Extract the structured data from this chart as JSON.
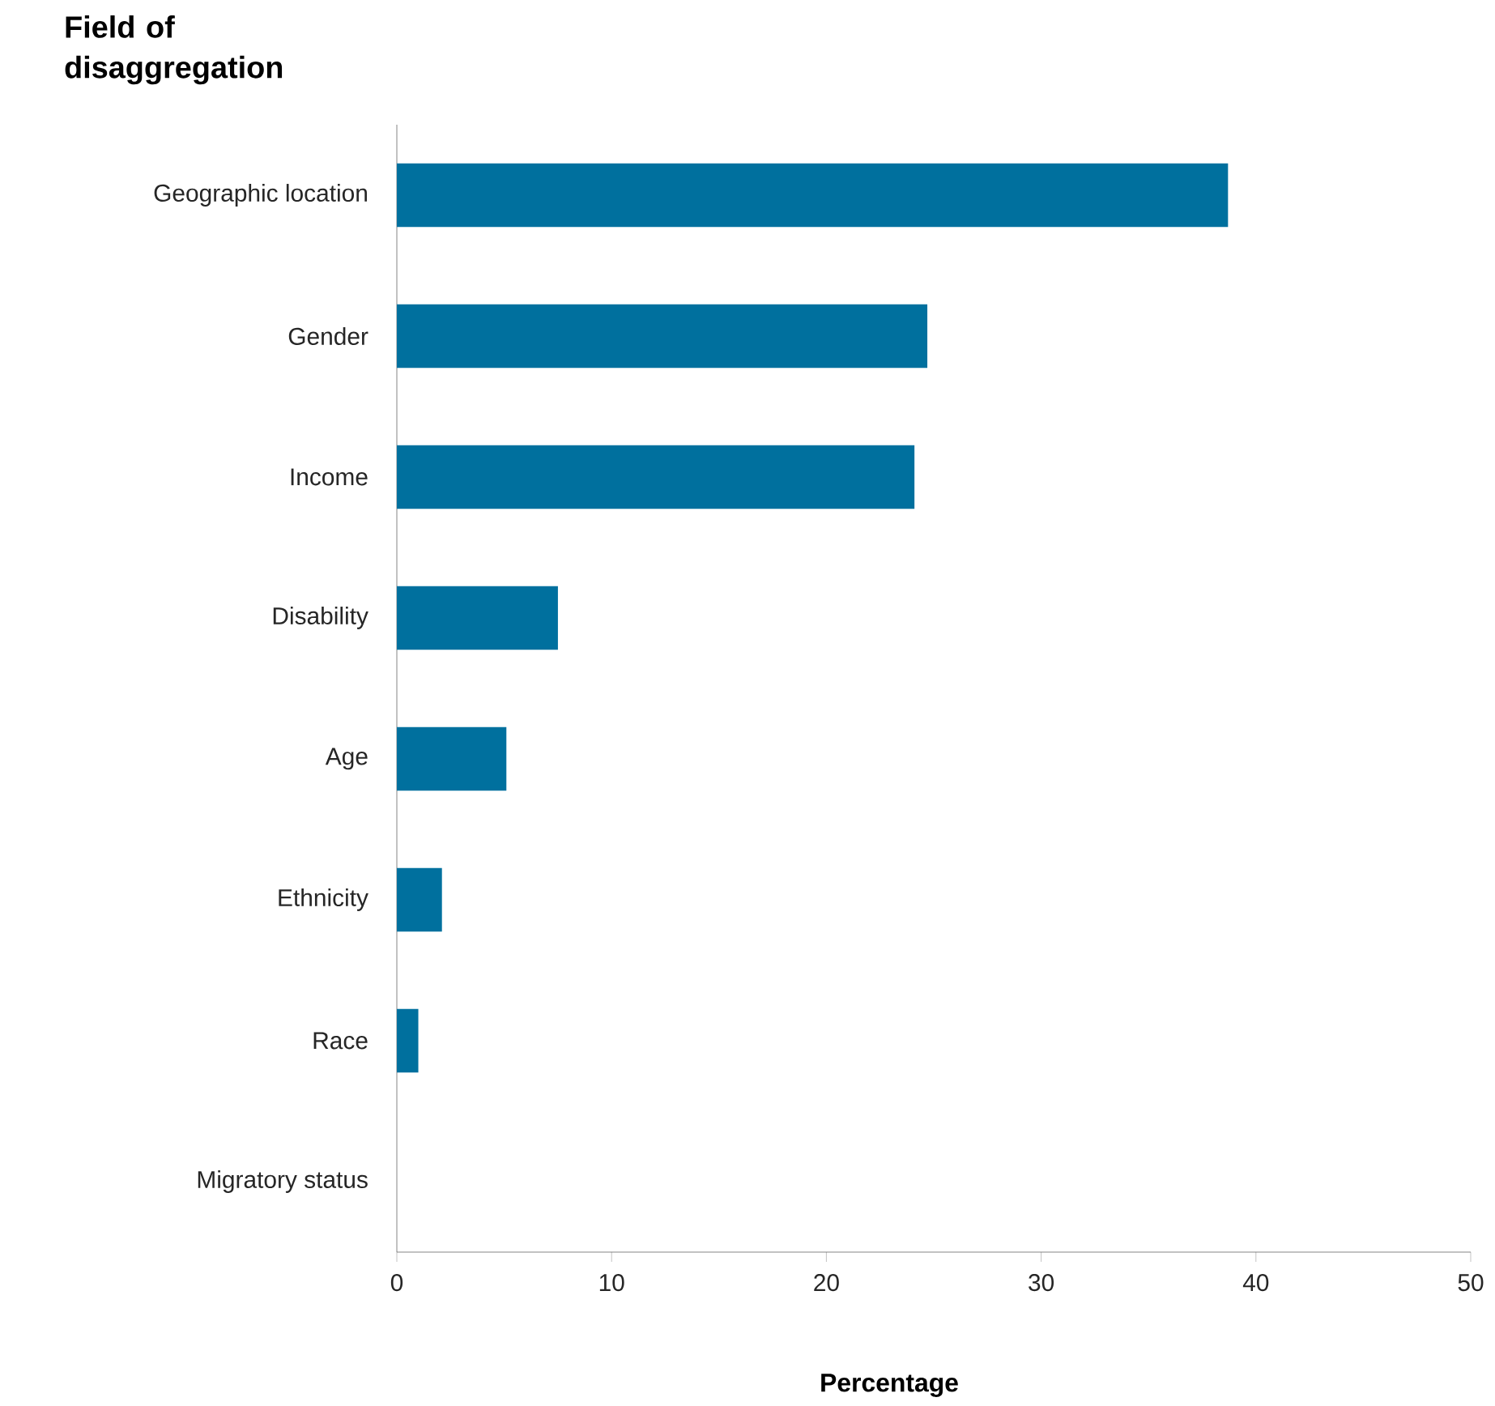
{
  "chart_data": {
    "type": "bar",
    "orientation": "horizontal",
    "ylabel": "Field of disaggregation",
    "xlabel": "Percentage",
    "categories": [
      "Geographic location",
      "Gender",
      "Income",
      "Disability",
      "Age",
      "Ethnicity",
      "Race",
      "Migratory status"
    ],
    "values": [
      38.7,
      24.7,
      24.1,
      7.5,
      5.1,
      2.1,
      1.0,
      0
    ],
    "color": "#00709e",
    "xlim": [
      0,
      50
    ],
    "xticks": [
      0,
      10,
      20,
      30,
      40,
      50
    ]
  }
}
